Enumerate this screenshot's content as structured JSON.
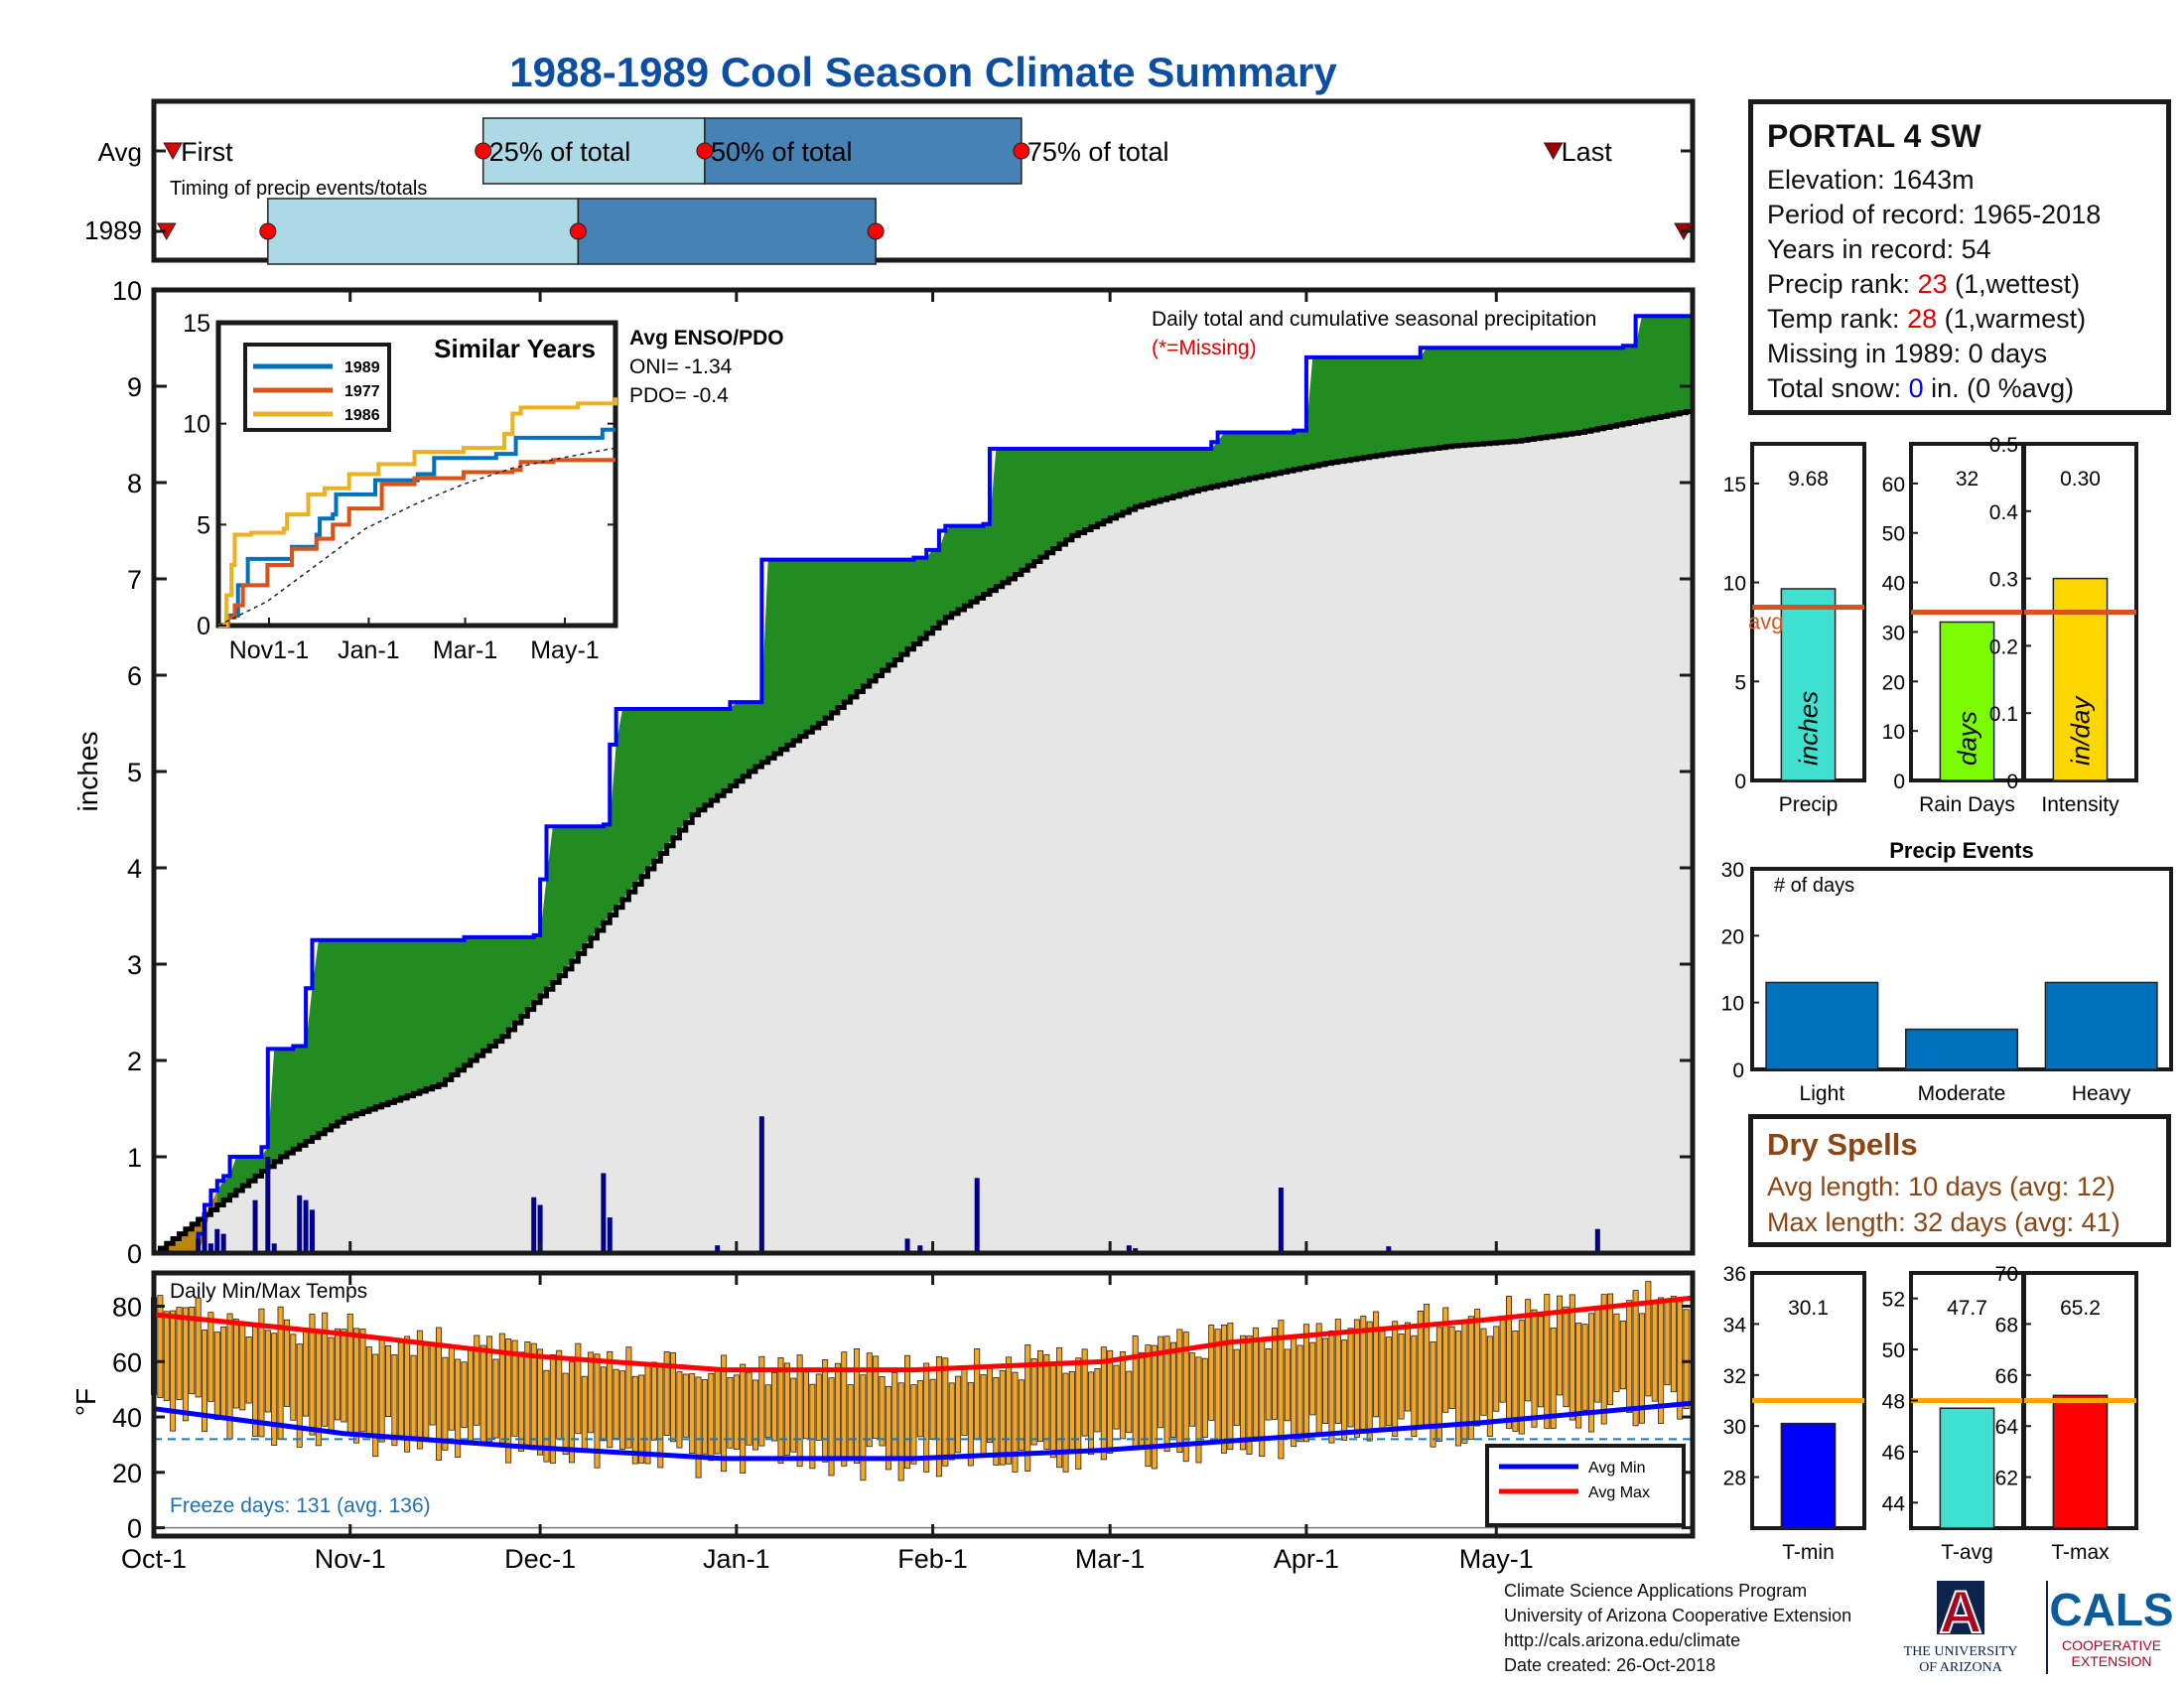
{
  "title": "1988-1989 Cool Season Climate Summary",
  "station": {
    "name": "PORTAL 4 SW",
    "elevation_label": "Elevation: 1643m",
    "period_label": "Period of record: 1965-2018",
    "years_label": "Years in record: 54",
    "precip_rank_prefix": "Precip rank: ",
    "precip_rank_value": "23",
    "precip_rank_suffix": " (1,wettest)",
    "temp_rank_prefix": "Temp rank: ",
    "temp_rank_value": "28",
    "temp_rank_suffix": " (1,warmest)",
    "missing_label": "Missing in 1989: 0 days",
    "snow_prefix": "Total snow: ",
    "snow_value": "0",
    "snow_suffix": " in. (0 %avg)"
  },
  "dry_spells": {
    "title": "Dry Spells",
    "avg_line": "Avg length: 10 days (avg: 12)",
    "max_line": "Max length: 32 days (avg: 41)"
  },
  "credits": {
    "line1": "Climate Science Applications Program",
    "line2": "University of Arizona Cooperative Extension",
    "line3": "http://cals.arizona.edu/climate",
    "line4": " Date created: 26-Oct-2018"
  },
  "logos": {
    "ua_letter": "A",
    "ua_text1": "THE UNIVERSITY",
    "ua_text2": "OF ARIZONA",
    "cals_text": "CALS",
    "cals_sub1": "COOPERATIVE",
    "cals_sub2": "EXTENSION"
  },
  "chart_data": [
    {
      "id": "timing",
      "type": "timeline",
      "rows": [
        "Avg",
        "1989"
      ],
      "caption": "Timing of precip events/totals",
      "avg": {
        "first": "Oct-4",
        "p25": "Nov-22",
        "p50": "Dec-27",
        "p75": "Feb-15",
        "last": "May-10",
        "labels": {
          "first": "First",
          "p25": "25% of total",
          "p50": "50% of total",
          "p75": "75% of total",
          "last": "Last"
        }
      },
      "obs": {
        "first": "Oct-3",
        "p25": "Oct-19",
        "p50": "Dec-7",
        "p75": "Jan-23",
        "last": "May-31"
      },
      "colors": {
        "q1": "#add8e6",
        "q2": "#4682b4",
        "marker": "#ff0000"
      }
    },
    {
      "id": "precip",
      "type": "area",
      "ylabel": "inches",
      "ylim": [
        0,
        10
      ],
      "yticks": [
        0,
        1,
        2,
        3,
        4,
        5,
        6,
        7,
        8,
        9,
        10
      ],
      "xticks": [
        "Oct-1",
        "Nov-1",
        "Dec-1",
        "Jan-1",
        "Feb-1",
        "Mar-1",
        "Apr-1",
        "May-1"
      ],
      "annotation": "Daily total and cumulative seasonal precipitation",
      "annotation_missing": "(*=Missing)",
      "enso_title": "Avg ENSO/PDO",
      "oni_label": "ONI= -1.34",
      "pdo_label": "PDO= -0.4",
      "cumulative_1989": [
        [
          0,
          0
        ],
        [
          7,
          0.2
        ],
        [
          8,
          0.5
        ],
        [
          9,
          0.65
        ],
        [
          10,
          0.75
        ],
        [
          11,
          0.8
        ],
        [
          12,
          1.0
        ],
        [
          16,
          1.0
        ],
        [
          17,
          1.1
        ],
        [
          18,
          2.12
        ],
        [
          22,
          2.15
        ],
        [
          24,
          2.75
        ],
        [
          25,
          3.25
        ],
        [
          48,
          3.25
        ],
        [
          49,
          3.28
        ],
        [
          60,
          3.3
        ],
        [
          61,
          3.88
        ],
        [
          62,
          4.43
        ],
        [
          71,
          4.45
        ],
        [
          72,
          5.28
        ],
        [
          73,
          5.65
        ],
        [
          90,
          5.65
        ],
        [
          91,
          5.72
        ],
        [
          96,
          7.2
        ],
        [
          120,
          7.22
        ],
        [
          122,
          7.3
        ],
        [
          124,
          7.5
        ],
        [
          125,
          7.55
        ],
        [
          131,
          7.57
        ],
        [
          132,
          8.35
        ],
        [
          167,
          8.42
        ],
        [
          168,
          8.52
        ],
        [
          180,
          8.54
        ],
        [
          182,
          9.3
        ],
        [
          197,
          9.3
        ],
        [
          200,
          9.4
        ],
        [
          232,
          9.42
        ],
        [
          234,
          9.73
        ],
        [
          243,
          9.76
        ]
      ],
      "average_cumulative": [
        [
          0,
          0
        ],
        [
          10,
          0.5
        ],
        [
          20,
          1.0
        ],
        [
          30,
          1.4
        ],
        [
          45,
          1.75
        ],
        [
          55,
          2.25
        ],
        [
          65,
          2.95
        ],
        [
          75,
          3.75
        ],
        [
          85,
          4.55
        ],
        [
          95,
          5.05
        ],
        [
          105,
          5.5
        ],
        [
          115,
          6.05
        ],
        [
          125,
          6.6
        ],
        [
          135,
          7.0
        ],
        [
          145,
          7.45
        ],
        [
          155,
          7.75
        ],
        [
          165,
          7.93
        ],
        [
          175,
          8.07
        ],
        [
          185,
          8.2
        ],
        [
          195,
          8.3
        ],
        [
          205,
          8.38
        ],
        [
          215,
          8.43
        ],
        [
          225,
          8.52
        ],
        [
          235,
          8.65
        ],
        [
          243,
          8.75
        ]
      ],
      "daily": [
        [
          7,
          0.15
        ],
        [
          8,
          0.35
        ],
        [
          9,
          0.1
        ],
        [
          10,
          0.25
        ],
        [
          11,
          0.2
        ],
        [
          16,
          0.55
        ],
        [
          18,
          1.0
        ],
        [
          19,
          0.1
        ],
        [
          23,
          0.6
        ],
        [
          24,
          0.55
        ],
        [
          25,
          0.45
        ],
        [
          60,
          0.58
        ],
        [
          61,
          0.5
        ],
        [
          71,
          0.83
        ],
        [
          72,
          0.37
        ],
        [
          89,
          0.08
        ],
        [
          96,
          1.42
        ],
        [
          116,
          0.02
        ],
        [
          119,
          0.15
        ],
        [
          121,
          0.08
        ],
        [
          130,
          0.78
        ],
        [
          144,
          0.02
        ],
        [
          154,
          0.08
        ],
        [
          155,
          0.05
        ],
        [
          178,
          0.68
        ],
        [
          195,
          0.07
        ],
        [
          228,
          0.25
        ]
      ],
      "colors": {
        "above_avg": "#228b22",
        "below_avg": "#e6e6e6",
        "deficit": "#b8860b",
        "line_1989": "#0000ff",
        "line_avg": "#000000",
        "daily_bars": "#00008b"
      }
    },
    {
      "id": "similar_years",
      "type": "line",
      "title": "Similar Years",
      "ylim": [
        0,
        15
      ],
      "yticks": [
        0,
        5,
        10,
        15
      ],
      "xticks": [
        "Nov1-1",
        "Jan-1",
        "Mar-1",
        "May-1"
      ],
      "series": [
        {
          "name": "1989",
          "color": "#0072bd",
          "points": [
            [
              0,
              0
            ],
            [
              5,
              0.5
            ],
            [
              12,
              2
            ],
            [
              18,
              3.3
            ],
            [
              40,
              3.3
            ],
            [
              45,
              3.9
            ],
            [
              60,
              4.5
            ],
            [
              62,
              5.3
            ],
            [
              70,
              5.5
            ],
            [
              72,
              6.5
            ],
            [
              96,
              7.2
            ],
            [
              122,
              7.5
            ],
            [
              132,
              8.3
            ],
            [
              170,
              8.5
            ],
            [
              182,
              9.3
            ],
            [
              233,
              9.3
            ],
            [
              235,
              9.7
            ],
            [
              243,
              9.7
            ]
          ]
        },
        {
          "name": "1977",
          "color": "#d95319",
          "points": [
            [
              0,
              0
            ],
            [
              6,
              0.4
            ],
            [
              10,
              1
            ],
            [
              15,
              2
            ],
            [
              30,
              3
            ],
            [
              45,
              3.8
            ],
            [
              60,
              4.3
            ],
            [
              70,
              5
            ],
            [
              80,
              5.8
            ],
            [
              100,
              7
            ],
            [
              120,
              7.3
            ],
            [
              150,
              7.6
            ],
            [
              180,
              7.7
            ],
            [
              185,
              8.1
            ],
            [
              205,
              8.2
            ],
            [
              243,
              8.2
            ]
          ]
        },
        {
          "name": "1986",
          "color": "#edb120",
          "points": [
            [
              0,
              0
            ],
            [
              5,
              1.5
            ],
            [
              8,
              3
            ],
            [
              10,
              4.5
            ],
            [
              20,
              4.6
            ],
            [
              40,
              4.8
            ],
            [
              42,
              5.5
            ],
            [
              55,
              6.5
            ],
            [
              65,
              6.8
            ],
            [
              80,
              7.5
            ],
            [
              98,
              8
            ],
            [
              120,
              8.6
            ],
            [
              150,
              8.8
            ],
            [
              175,
              9.5
            ],
            [
              180,
              10.5
            ],
            [
              185,
              10.8
            ],
            [
              200,
              10.8
            ],
            [
              220,
              11.0
            ],
            [
              243,
              11.3
            ]
          ]
        }
      ],
      "average": [
        [
          0,
          0
        ],
        [
          30,
          1.2
        ],
        [
          60,
          3
        ],
        [
          90,
          4.8
        ],
        [
          120,
          6
        ],
        [
          150,
          7
        ],
        [
          180,
          7.8
        ],
        [
          210,
          8.3
        ],
        [
          243,
          8.8
        ]
      ]
    },
    {
      "id": "precip_stats",
      "type": "bar",
      "panels": [
        {
          "label": "Precip",
          "value": 9.68,
          "value_label": "9.68",
          "avg": 8.75,
          "ylim": [
            0,
            17
          ],
          "yticks": [
            0,
            5,
            10,
            15
          ],
          "color": "#40e0d0",
          "unit": "inches",
          "avg_label": "avg"
        },
        {
          "label": "Rain Days",
          "value": 32,
          "value_label": "32",
          "avg": 34,
          "ylim": [
            0,
            68
          ],
          "yticks": [
            0,
            10,
            20,
            30,
            40,
            50,
            60
          ],
          "color": "#7cfc00",
          "unit": "days"
        },
        {
          "label": "Intensity",
          "value": 0.3,
          "value_label": "0.30",
          "avg": 0.25,
          "ylim": [
            0,
            0.5
          ],
          "yticks": [
            0,
            0.1,
            0.2,
            0.3,
            0.4,
            0.5
          ],
          "color": "#ffd700",
          "unit": "in/day"
        }
      ],
      "avg_line_color": "#d95319"
    },
    {
      "id": "precip_events",
      "type": "bar",
      "title": "Precip Events",
      "ylabel_inline": "# of days",
      "categories": [
        "Light",
        "Moderate",
        "Heavy"
      ],
      "values": [
        13,
        6,
        13
      ],
      "ylim": [
        0,
        30
      ],
      "yticks": [
        0,
        10,
        20,
        30
      ],
      "color": "#0072bd"
    },
    {
      "id": "temps",
      "type": "bar",
      "title": "Daily Min/Max Temps",
      "ylabel": "°F",
      "ylim": [
        -3,
        92
      ],
      "yticks": [
        0,
        20,
        40,
        60,
        80
      ],
      "xticks": [
        "Oct-1",
        "Nov-1",
        "Dec-1",
        "Jan-1",
        "Feb-1",
        "Mar-1",
        "Apr-1",
        "May-1"
      ],
      "freeze_label": "Freeze days: 131 (avg. 136)",
      "freeze_line": 32,
      "legend": [
        "Avg Min",
        "Avg Max"
      ],
      "avg_min": [
        [
          0,
          43
        ],
        [
          30,
          34
        ],
        [
          60,
          29
        ],
        [
          90,
          25
        ],
        [
          120,
          25
        ],
        [
          150,
          28
        ],
        [
          180,
          33
        ],
        [
          210,
          38
        ],
        [
          243,
          45
        ]
      ],
      "avg_max": [
        [
          0,
          77
        ],
        [
          30,
          70
        ],
        [
          60,
          62
        ],
        [
          90,
          57
        ],
        [
          120,
          57
        ],
        [
          150,
          60
        ],
        [
          170,
          67
        ],
        [
          210,
          75
        ],
        [
          243,
          83
        ]
      ],
      "colors": {
        "bars": "#f5a623",
        "avg_min": "#0000ff",
        "avg_max": "#ff0000",
        "freeze": "#1f77b4"
      }
    },
    {
      "id": "temp_stats",
      "type": "bar",
      "panels": [
        {
          "label": "T-min",
          "value": 30.1,
          "value_label": "30.1",
          "avg": 31.0,
          "ylim": [
            26,
            36
          ],
          "yticks": [
            28,
            30,
            32,
            34,
            36
          ],
          "color": "#0000ff"
        },
        {
          "label": "T-avg",
          "value": 47.7,
          "value_label": "47.7",
          "avg": 48.0,
          "ylim": [
            43,
            53
          ],
          "yticks": [
            44,
            46,
            48,
            50,
            52
          ],
          "color": "#40e0d0"
        },
        {
          "label": "T-max",
          "value": 65.2,
          "value_label": "65.2",
          "avg": 65.0,
          "ylim": [
            60,
            70
          ],
          "yticks": [
            62,
            64,
            66,
            68,
            70
          ],
          "color": "#ff0000"
        }
      ],
      "avg_line_color": "#ffa500"
    }
  ]
}
